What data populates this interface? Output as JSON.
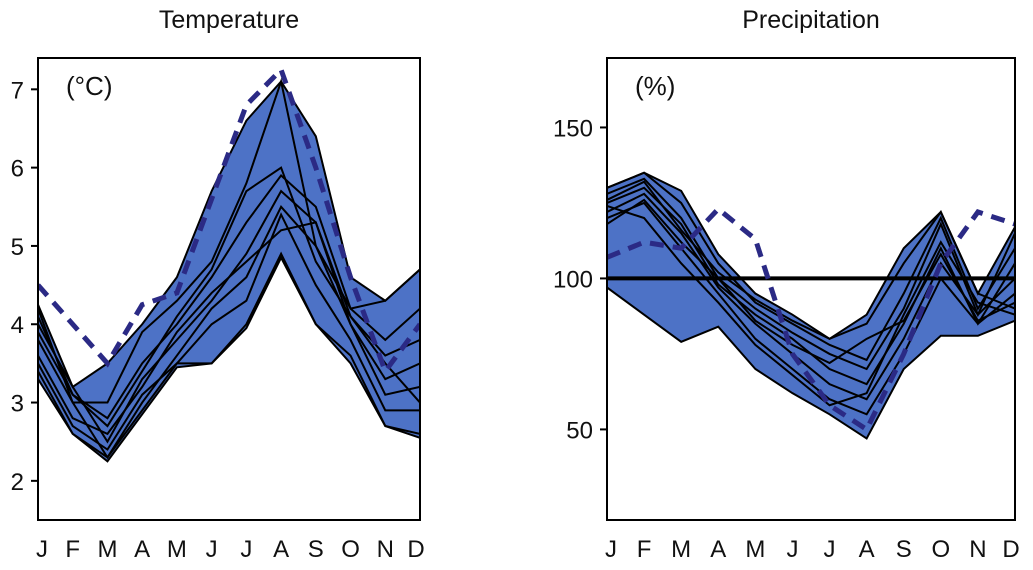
{
  "chart_data": [
    {
      "type": "line",
      "title": "Temperature",
      "unit_label": "(°C)",
      "categories": [
        "J",
        "F",
        "M",
        "A",
        "M",
        "J",
        "J",
        "A",
        "S",
        "O",
        "N",
        "D"
      ],
      "ylim": [
        1.5,
        7.4
      ],
      "yticks": [
        2,
        3,
        4,
        5,
        6,
        7
      ],
      "band": {
        "color": "#4d72c6",
        "upper": [
          4.25,
          3.2,
          3.5,
          4.0,
          4.6,
          5.7,
          6.6,
          7.1,
          6.4,
          4.6,
          4.3,
          4.7
        ],
        "lower": [
          3.3,
          2.6,
          2.25,
          2.85,
          3.45,
          3.5,
          3.95,
          4.85,
          4.0,
          3.5,
          2.7,
          2.55
        ]
      },
      "series": [
        {
          "color": "#000000",
          "values": [
            4.2,
            3.0,
            3.0,
            3.9,
            4.3,
            4.8,
            5.8,
            7.1,
            5.0,
            4.2,
            4.3,
            4.7
          ]
        },
        {
          "color": "#000000",
          "values": [
            4.1,
            3.1,
            2.8,
            3.5,
            4.0,
            4.6,
            5.3,
            5.9,
            5.5,
            4.2,
            3.8,
            4.2
          ]
        },
        {
          "color": "#000000",
          "values": [
            4.0,
            3.2,
            2.5,
            3.3,
            3.8,
            4.3,
            4.9,
            5.7,
            5.3,
            4.1,
            3.6,
            3.8
          ]
        },
        {
          "color": "#000000",
          "values": [
            3.8,
            3.0,
            2.3,
            3.0,
            3.6,
            4.2,
            4.6,
            5.5,
            5.0,
            4.0,
            3.3,
            3.5
          ]
        },
        {
          "color": "#000000",
          "values": [
            3.6,
            2.8,
            2.6,
            3.2,
            3.9,
            4.4,
            4.8,
            5.2,
            5.3,
            4.0,
            3.1,
            3.2
          ]
        },
        {
          "color": "#000000",
          "values": [
            3.5,
            2.7,
            2.4,
            3.1,
            3.5,
            4.0,
            4.3,
            5.4,
            4.5,
            3.8,
            2.9,
            2.9
          ]
        },
        {
          "color": "#000000",
          "values": [
            3.9,
            3.1,
            2.7,
            3.4,
            4.1,
            4.7,
            5.7,
            6.0,
            4.8,
            4.1,
            3.5,
            3.0
          ]
        },
        {
          "color": "#000000",
          "values": [
            3.4,
            2.6,
            2.3,
            2.9,
            3.5,
            3.5,
            4.0,
            4.9,
            4.0,
            3.6,
            2.7,
            2.6
          ]
        },
        {
          "color": "#2b2a85",
          "dashed": true,
          "values": [
            4.5,
            4.0,
            3.5,
            4.25,
            4.4,
            5.6,
            6.8,
            7.25,
            6.0,
            4.6,
            3.4,
            4.0
          ]
        }
      ]
    },
    {
      "type": "line",
      "title": "Precipitation",
      "unit_label": "(%)",
      "categories": [
        "J",
        "F",
        "M",
        "A",
        "M",
        "J",
        "J",
        "A",
        "S",
        "O",
        "N",
        "D"
      ],
      "ylim": [
        20,
        173
      ],
      "yticks": [
        50,
        100,
        150
      ],
      "reference_line": 100,
      "band": {
        "color": "#4d72c6",
        "upper": [
          130,
          135,
          129,
          108,
          95,
          88,
          80,
          88,
          110,
          122,
          95,
          117
        ],
        "lower": [
          97,
          88,
          79,
          84,
          70,
          62,
          55,
          47,
          70,
          81,
          81,
          86
        ]
      },
      "series": [
        {
          "color": "#000000",
          "values": [
            130,
            135,
            125,
            105,
            92,
            85,
            78,
            73,
            95,
            120,
            90,
            110
          ]
        },
        {
          "color": "#000000",
          "values": [
            128,
            133,
            120,
            100,
            90,
            82,
            75,
            70,
            90,
            118,
            88,
            115
          ]
        },
        {
          "color": "#000000",
          "values": [
            125,
            130,
            118,
            98,
            88,
            80,
            70,
            65,
            85,
            110,
            85,
            105
          ]
        },
        {
          "color": "#000000",
          "values": [
            122,
            128,
            115,
            97,
            85,
            75,
            65,
            60,
            80,
            105,
            88,
            100
          ]
        },
        {
          "color": "#000000",
          "values": [
            120,
            125,
            110,
            95,
            80,
            70,
            60,
            55,
            75,
            100,
            85,
            95
          ]
        },
        {
          "color": "#000000",
          "values": [
            126,
            132,
            116,
            102,
            93,
            86,
            80,
            85,
            105,
            122,
            95,
            90
          ]
        },
        {
          "color": "#000000",
          "values": [
            124,
            120,
            105,
            92,
            78,
            68,
            58,
            62,
            88,
            112,
            92,
            88
          ]
        },
        {
          "color": "#000000",
          "values": [
            118,
            126,
            112,
            100,
            86,
            78,
            72,
            80,
            86,
            108,
            86,
            92
          ]
        },
        {
          "color": "#2b2a85",
          "dashed": true,
          "values": [
            107,
            112,
            110,
            123,
            113,
            75,
            58,
            50,
            75,
            105,
            122,
            118
          ]
        }
      ]
    }
  ]
}
